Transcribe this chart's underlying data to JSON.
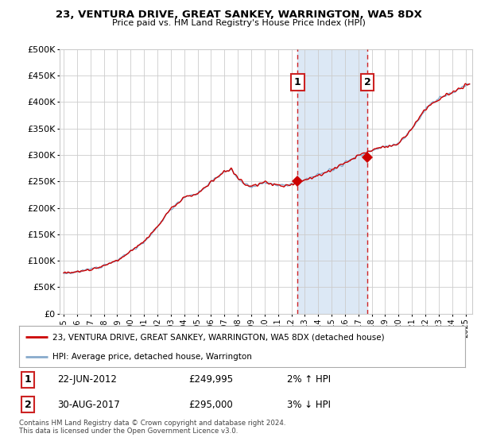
{
  "title": "23, VENTURA DRIVE, GREAT SANKEY, WARRINGTON, WA5 8DX",
  "subtitle": "Price paid vs. HM Land Registry's House Price Index (HPI)",
  "ylabel_ticks": [
    "£0",
    "£50K",
    "£100K",
    "£150K",
    "£200K",
    "£250K",
    "£300K",
    "£350K",
    "£400K",
    "£450K",
    "£500K"
  ],
  "ytick_values": [
    0,
    50000,
    100000,
    150000,
    200000,
    250000,
    300000,
    350000,
    400000,
    450000,
    500000
  ],
  "ylim": [
    0,
    500000
  ],
  "xlim_start": 1994.7,
  "xlim_end": 2025.5,
  "marker1_x": 2012.47,
  "marker1_y": 249995,
  "marker1_label": "22-JUN-2012",
  "marker1_price": "£249,995",
  "marker1_hpi": "2% ↑ HPI",
  "marker2_x": 2017.66,
  "marker2_y": 295000,
  "marker2_label": "30-AUG-2017",
  "marker2_price": "£295,000",
  "marker2_hpi": "3% ↓ HPI",
  "line1_color": "#cc0000",
  "line2_color": "#88aacc",
  "span_color": "#dce8f5",
  "grid_color": "#cccccc",
  "legend_line1": "23, VENTURA DRIVE, GREAT SANKEY, WARRINGTON, WA5 8DX (detached house)",
  "legend_line2": "HPI: Average price, detached house, Warrington",
  "footer": "Contains HM Land Registry data © Crown copyright and database right 2024.\nThis data is licensed under the Open Government Licence v3.0.",
  "xtick_years": [
    1995,
    1996,
    1997,
    1998,
    1999,
    2000,
    2001,
    2002,
    2003,
    2004,
    2005,
    2006,
    2007,
    2008,
    2009,
    2010,
    2011,
    2012,
    2013,
    2014,
    2015,
    2016,
    2017,
    2018,
    2019,
    2020,
    2021,
    2022,
    2023,
    2024,
    2025
  ],
  "hpi_shape": [
    [
      1995.0,
      76000
    ],
    [
      1996.0,
      79000
    ],
    [
      1997.0,
      84000
    ],
    [
      1998.0,
      91000
    ],
    [
      1999.0,
      101000
    ],
    [
      2000.0,
      118000
    ],
    [
      2001.0,
      135000
    ],
    [
      2002.0,
      165000
    ],
    [
      2003.0,
      198000
    ],
    [
      2004.0,
      220000
    ],
    [
      2005.0,
      228000
    ],
    [
      2006.0,
      248000
    ],
    [
      2007.0,
      268000
    ],
    [
      2007.5,
      272000
    ],
    [
      2008.0,
      257000
    ],
    [
      2008.5,
      245000
    ],
    [
      2009.0,
      240000
    ],
    [
      2009.5,
      243000
    ],
    [
      2010.0,
      248000
    ],
    [
      2010.5,
      246000
    ],
    [
      2011.0,
      243000
    ],
    [
      2011.5,
      242000
    ],
    [
      2012.0,
      245000
    ],
    [
      2012.5,
      249000
    ],
    [
      2013.0,
      252000
    ],
    [
      2013.5,
      256000
    ],
    [
      2014.0,
      262000
    ],
    [
      2014.5,
      267000
    ],
    [
      2015.0,
      272000
    ],
    [
      2015.5,
      278000
    ],
    [
      2016.0,
      285000
    ],
    [
      2016.5,
      291000
    ],
    [
      2017.0,
      298000
    ],
    [
      2017.5,
      303000
    ],
    [
      2018.0,
      308000
    ],
    [
      2018.5,
      312000
    ],
    [
      2019.0,
      315000
    ],
    [
      2019.5,
      318000
    ],
    [
      2020.0,
      322000
    ],
    [
      2020.5,
      334000
    ],
    [
      2021.0,
      350000
    ],
    [
      2021.5,
      368000
    ],
    [
      2022.0,
      385000
    ],
    [
      2022.5,
      398000
    ],
    [
      2023.0,
      405000
    ],
    [
      2023.5,
      412000
    ],
    [
      2024.0,
      418000
    ],
    [
      2024.5,
      425000
    ],
    [
      2025.0,
      432000
    ]
  ]
}
